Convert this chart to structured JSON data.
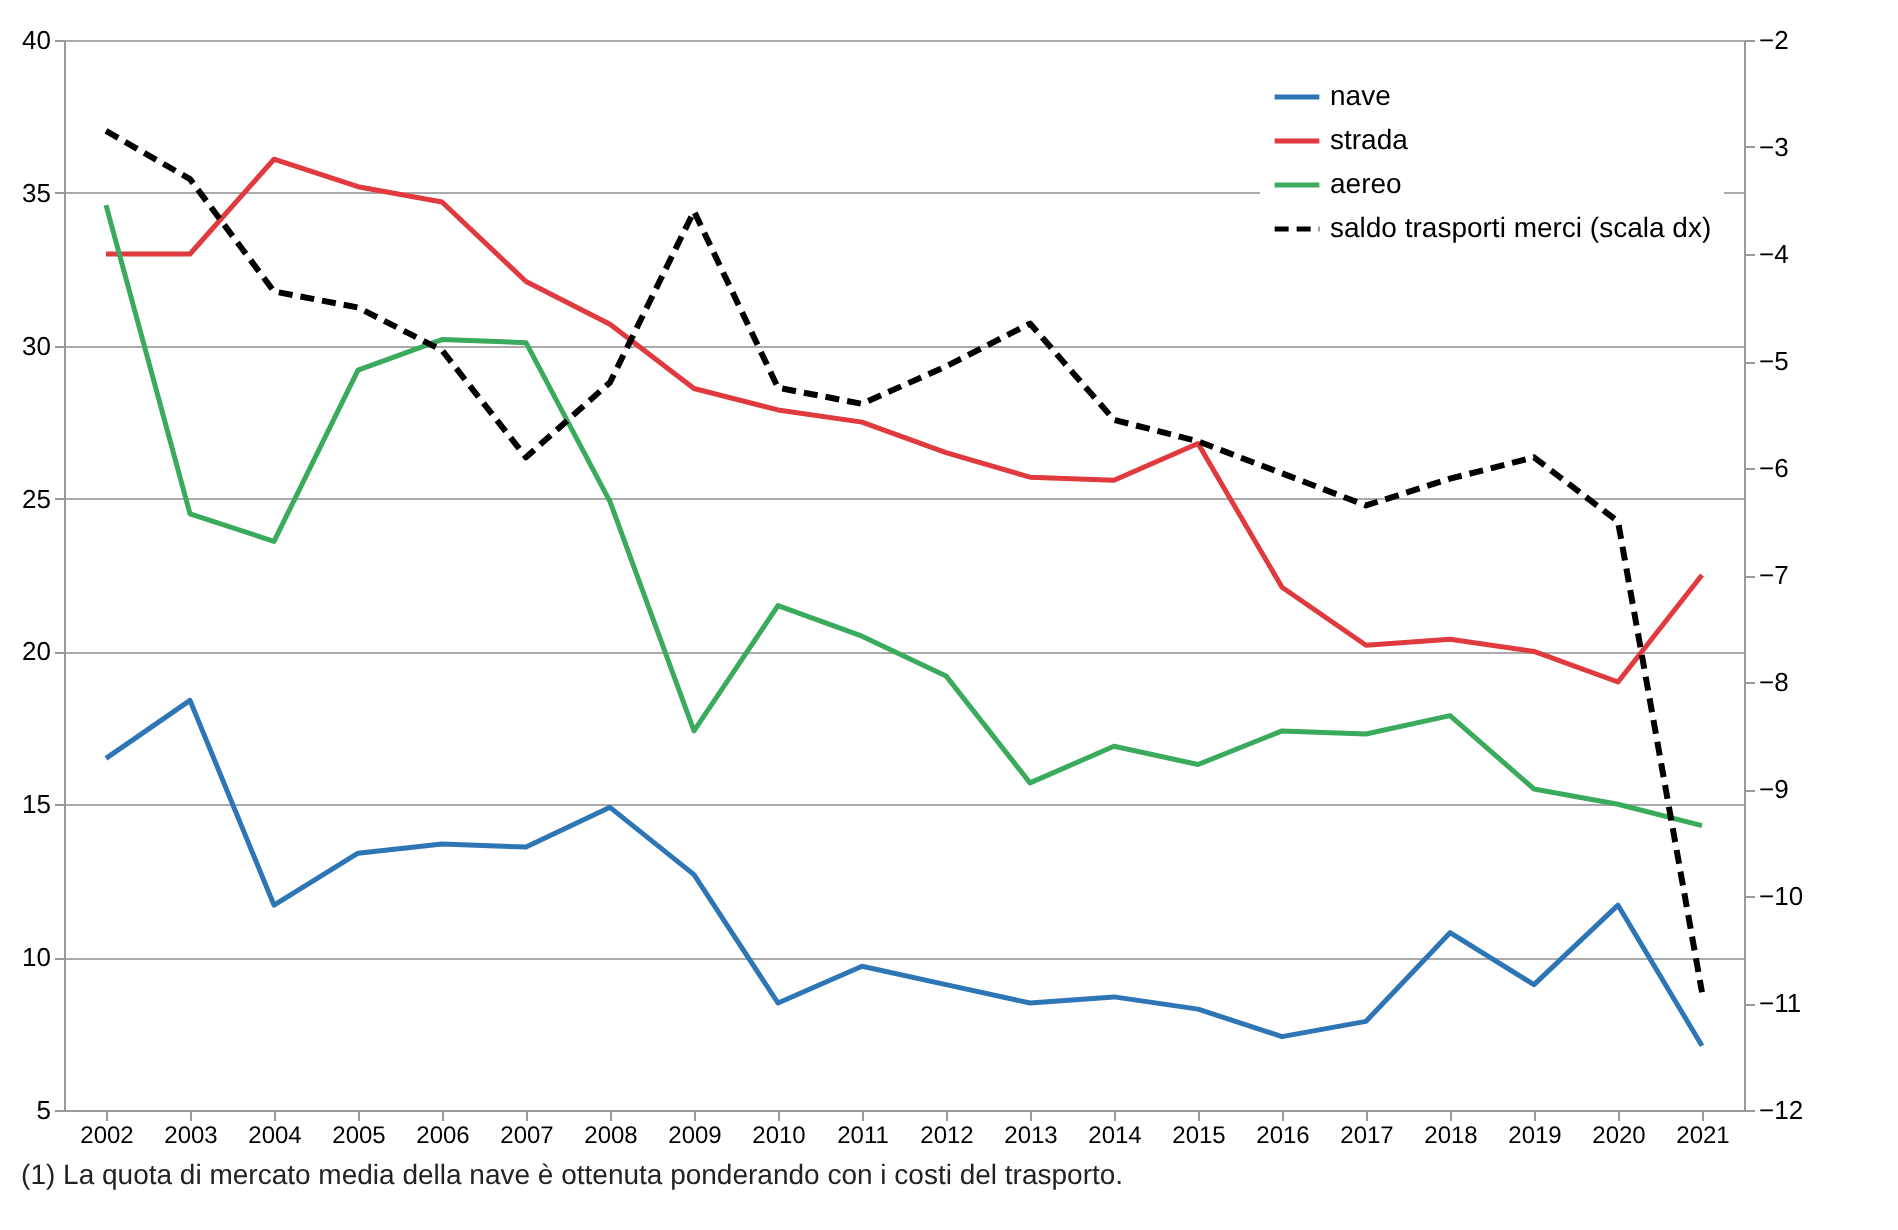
{
  "chart_data": {
    "type": "line",
    "categories": [
      "2002",
      "2003",
      "2004",
      "2005",
      "2006",
      "2007",
      "2008",
      "2009",
      "2010",
      "2011",
      "2012",
      "2013",
      "2014",
      "2015",
      "2016",
      "2017",
      "2018",
      "2019",
      "2020",
      "2021"
    ],
    "ylim": [
      5,
      40
    ],
    "yticks": [
      5,
      10,
      15,
      20,
      25,
      30,
      35,
      40
    ],
    "y2lim": [
      -12,
      -2
    ],
    "y2ticks": [
      -12,
      -11,
      -10,
      -9,
      -8,
      -7,
      -6,
      -5,
      -4,
      -3,
      -2
    ],
    "grid": "y",
    "legend": "top right",
    "series": [
      {
        "name": "nave",
        "color": "#2e75b6",
        "line_style": "solid",
        "values": [
          16.5,
          18.4,
          11.7,
          13.4,
          13.7,
          13.6,
          14.9,
          12.7,
          8.5,
          9.7,
          9.1,
          8.5,
          8.7,
          8.3,
          7.4,
          7.9,
          10.8,
          9.1,
          11.7,
          7.1
        ]
      },
      {
        "name": "strada",
        "color": "#e0393e",
        "line_style": "solid",
        "values": [
          33.0,
          33.0,
          36.1,
          35.2,
          34.7,
          32.1,
          30.7,
          28.6,
          27.9,
          27.5,
          26.5,
          25.7,
          25.6,
          26.8,
          22.1,
          20.2,
          20.4,
          20.0,
          19.0,
          22.5
        ]
      },
      {
        "name": "aereo",
        "color": "#3aaa5c",
        "line_style": "solid",
        "values": [
          34.6,
          24.5,
          23.6,
          29.2,
          30.2,
          30.1,
          24.9,
          17.4,
          21.5,
          20.5,
          19.2,
          15.7,
          16.9,
          16.3,
          17.4,
          17.3,
          17.9,
          15.5,
          15.0,
          14.3
        ]
      },
      {
        "name": "saldo trasporti merci (scala dx)",
        "color": "#000000",
        "axis": "y2",
        "line_style": "dashed",
        "values": [
          -2.85,
          -3.3,
          -4.35,
          -4.5,
          -4.9,
          -5.9,
          -5.2,
          -3.6,
          -5.25,
          -5.4,
          -5.05,
          -4.65,
          -5.55,
          -5.75,
          -6.05,
          -6.35,
          -6.1,
          -5.9,
          -6.5,
          -10.9
        ]
      }
    ],
    "annotations": [
      "(1) La quota di mercato media della nave è ottenuta ponderando con i costi del trasporto."
    ]
  }
}
